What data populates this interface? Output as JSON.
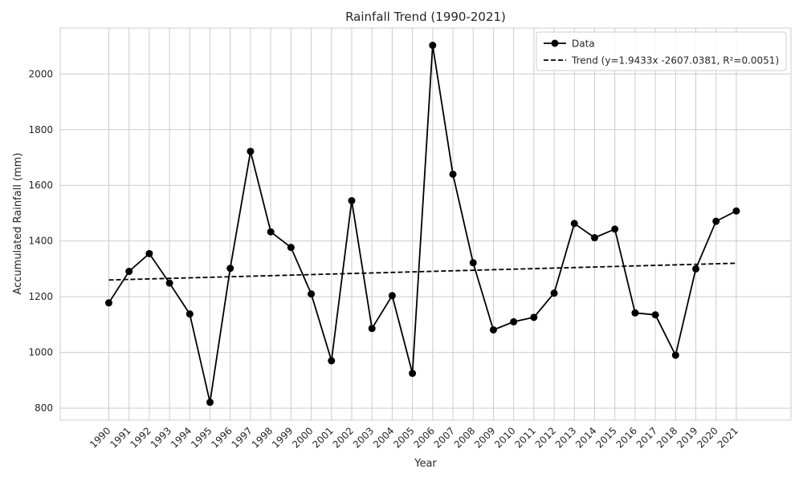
{
  "chart_data": {
    "type": "line",
    "title": "Rainfall Trend (1990-2021)",
    "xlabel": "Year",
    "ylabel": "Accumulated Rainfall (mm)",
    "x": [
      1990,
      1991,
      1992,
      1993,
      1994,
      1995,
      1996,
      1997,
      1998,
      1999,
      2000,
      2001,
      2002,
      2003,
      2004,
      2005,
      2006,
      2007,
      2008,
      2009,
      2010,
      2011,
      2012,
      2013,
      2014,
      2015,
      2016,
      2017,
      2018,
      2019,
      2020,
      2021
    ],
    "xlim": [
      1987.6,
      2023.7
    ],
    "ylim": [
      757,
      2165
    ],
    "yticks": [
      800,
      1000,
      1200,
      1400,
      1600,
      1800,
      2000
    ],
    "grid": true,
    "legend_position": "top-right",
    "series": [
      {
        "name": "Data",
        "color": "#000000",
        "style": "solid",
        "marker": "circle",
        "values": [
          1178,
          1291,
          1355,
          1249,
          1138,
          821,
          1302,
          1722,
          1433,
          1377,
          1210,
          970,
          1545,
          1086,
          1204,
          925,
          2103,
          1640,
          1322,
          1081,
          1110,
          1126,
          1213,
          1463,
          1412,
          1443,
          1142,
          1135,
          990,
          1300,
          1471,
          1508
        ]
      },
      {
        "name": "Trend (y=1.9433x -2607.0381, R²=0.0051)",
        "color": "#000000",
        "style": "dashed",
        "slope": 1.9433,
        "intercept": -2607.0381
      }
    ]
  }
}
